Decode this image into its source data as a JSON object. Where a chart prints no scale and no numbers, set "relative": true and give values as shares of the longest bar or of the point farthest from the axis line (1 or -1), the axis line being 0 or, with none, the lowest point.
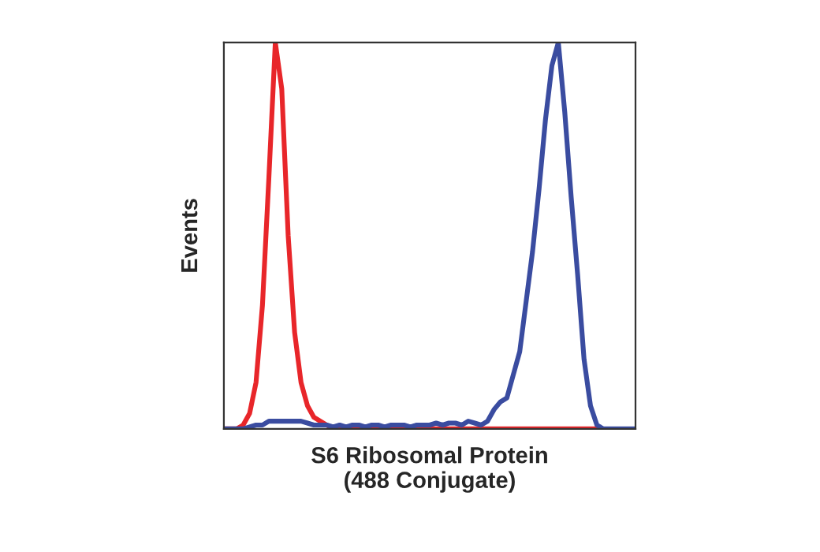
{
  "chart_data": {
    "type": "line",
    "relative": true,
    "xlabel": "S6 Ribosomal Protein\n(488 Conjugate)",
    "ylabel": "Events",
    "legend": false,
    "marker": "none",
    "line_style": "solid",
    "categories": [
      null,
      null,
      null,
      null,
      null,
      null,
      null,
      null,
      null,
      null,
      null,
      null,
      null,
      null,
      null,
      null,
      null,
      null,
      null,
      null,
      null,
      null,
      null,
      null,
      null,
      null,
      null,
      null,
      null,
      null,
      null,
      null,
      null,
      null,
      null,
      null,
      null,
      null,
      null,
      null,
      null,
      null,
      null,
      null,
      null,
      null,
      null,
      null,
      null,
      null,
      null,
      null,
      null,
      null,
      null,
      null,
      null,
      null,
      null,
      null,
      null,
      null,
      null,
      null,
      null
    ],
    "series": [
      {
        "color": "#e8262a",
        "values": [
          0,
          0,
          0,
          0.01,
          0.04,
          0.12,
          0.32,
          0.65,
          1.0,
          0.88,
          0.5,
          0.25,
          0.12,
          0.06,
          0.03,
          0.02,
          0.01,
          0,
          0,
          0,
          0,
          0,
          0,
          0,
          0,
          0,
          0,
          0,
          0,
          0,
          0,
          0,
          0,
          0,
          0,
          0,
          0,
          0,
          0,
          0,
          0,
          0,
          0,
          0,
          0,
          0,
          0,
          0,
          0,
          0,
          0,
          0,
          0,
          0,
          0,
          0,
          0,
          0,
          0,
          null,
          null,
          null,
          null,
          null,
          null
        ]
      },
      {
        "color": "#3a4ca0",
        "values": [
          0,
          0,
          0,
          0,
          0.005,
          0.01,
          0.01,
          0.02,
          0.02,
          0.02,
          0.02,
          0.02,
          0.02,
          0.015,
          0.01,
          0.01,
          0.01,
          0.005,
          0.01,
          0.005,
          0.01,
          0.01,
          0.005,
          0.01,
          0.01,
          0.005,
          0.01,
          0.01,
          0.01,
          0.005,
          0.01,
          0.01,
          0.01,
          0.015,
          0.01,
          0.015,
          0.015,
          0.01,
          0.02,
          0.015,
          0.01,
          0.02,
          0.05,
          0.07,
          0.08,
          0.14,
          0.2,
          0.33,
          0.46,
          0.62,
          0.8,
          0.94,
          1.0,
          0.82,
          0.6,
          0.4,
          0.18,
          0.06,
          0.01,
          0,
          0,
          0,
          0,
          0,
          0
        ]
      }
    ]
  }
}
